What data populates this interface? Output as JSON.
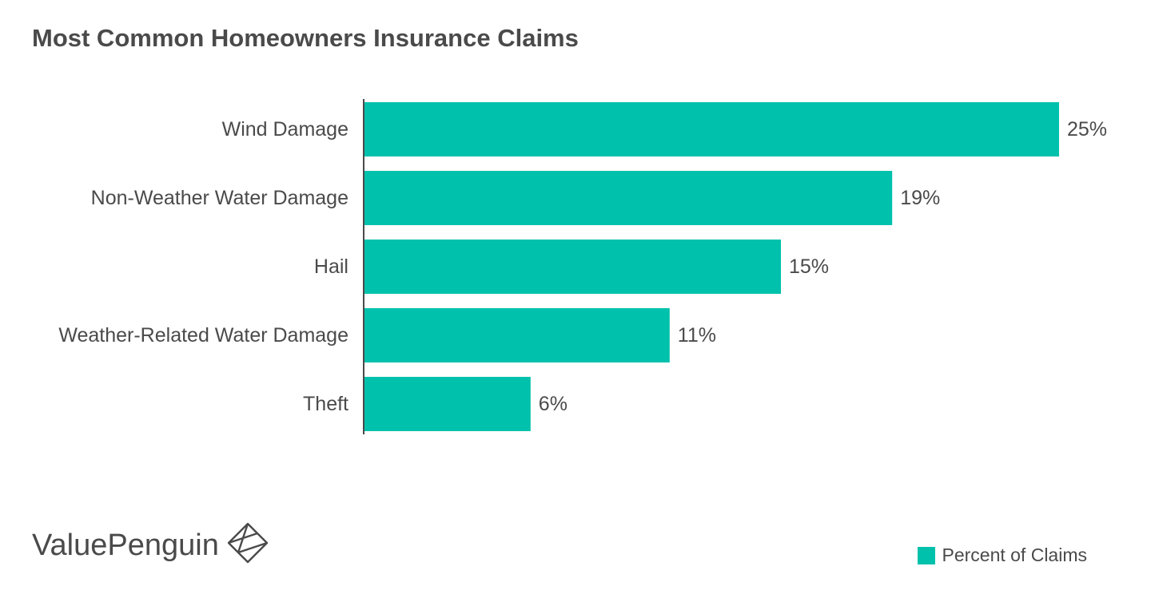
{
  "chart_data": {
    "type": "bar",
    "orientation": "horizontal",
    "title": "Most Common Homeowners Insurance Claims",
    "categories": [
      "Wind Damage",
      "Non-Weather Water Damage",
      "Hail",
      "Weather-Related Water Damage",
      "Theft"
    ],
    "series": [
      {
        "name": "Percent of Claims",
        "values": [
          25,
          19,
          15,
          11,
          6
        ],
        "labels": [
          "25%",
          "19%",
          "15%",
          "11%",
          "6%"
        ]
      }
    ],
    "xlim": [
      0,
      25
    ],
    "grid": false,
    "legend_position": "bottom-right",
    "bar_color": "#00c1ac",
    "axis_color": "#4a4a4a"
  },
  "branding": {
    "logo_text": "ValuePenguin",
    "logo_icon": "valuepenguin-diamond-logo"
  }
}
